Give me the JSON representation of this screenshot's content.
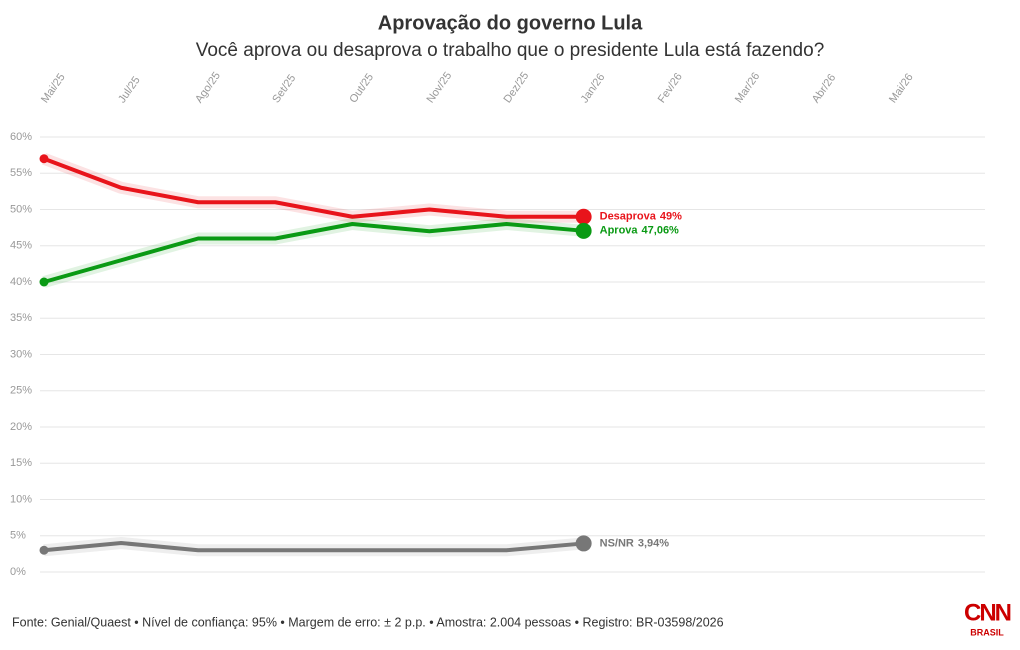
{
  "chart_data": {
    "type": "line",
    "title": "Aprovação do governo Lula",
    "subtitle": "Você aprova ou desaprova o trabalho que o presidente Lula está fazendo?",
    "categories": [
      "Mai/25",
      "Jul/25",
      "Ago/25",
      "Set/25",
      "Out/25",
      "Nov/25",
      "Dez/25",
      "Jan/26",
      "Fev/26",
      "Mar/26",
      "Abr/26",
      "Mai/26"
    ],
    "series": [
      {
        "name": "Desaprova",
        "color": "#e8141b",
        "values": [
          57,
          53,
          51,
          51,
          49,
          50,
          49,
          49,
          null,
          null,
          null,
          null
        ],
        "value_labels": [
          null,
          null,
          null,
          null,
          null,
          null,
          null,
          "49%",
          null,
          null,
          null,
          null
        ]
      },
      {
        "name": "Aprova",
        "color": "#0a9a14",
        "values": [
          40,
          43,
          46,
          46,
          48,
          47,
          48,
          47.06,
          null,
          null,
          null,
          null
        ],
        "value_labels": [
          null,
          null,
          null,
          null,
          null,
          null,
          null,
          "47,06%",
          null,
          null,
          null,
          null
        ]
      },
      {
        "name": "NS/NR",
        "color": "#777777",
        "values": [
          3,
          4,
          3,
          3,
          3,
          3,
          3,
          3.94,
          null,
          null,
          null,
          null
        ],
        "value_labels": [
          null,
          null,
          null,
          null,
          null,
          null,
          null,
          "3,94%",
          null,
          null,
          null,
          null
        ]
      }
    ],
    "ylim": [
      0,
      60
    ],
    "yticks": [
      {
        "value": 0,
        "label": "0%"
      },
      {
        "value": 5,
        "label": "5%"
      },
      {
        "value": 10,
        "label": "10%"
      },
      {
        "value": 15,
        "label": "15%"
      },
      {
        "value": 20,
        "label": "20%"
      },
      {
        "value": 25,
        "label": "25%"
      },
      {
        "value": 30,
        "label": "30%"
      },
      {
        "value": 35,
        "label": "35%"
      },
      {
        "value": 40,
        "label": "40%"
      },
      {
        "value": 45,
        "label": "45%"
      },
      {
        "value": 50,
        "label": "50%"
      },
      {
        "value": 55,
        "label": "55%"
      },
      {
        "value": 60,
        "label": "60%"
      }
    ],
    "grid": true,
    "source": "Fonte: Genial/Quaest • Nível de confiança: 95% • Margem de erro: ± 2 p.p. • Amostra: 2.004 pessoas • Registro: BR-03598/2026",
    "logo": {
      "main": "CNN",
      "sub": "BRASIL"
    }
  }
}
